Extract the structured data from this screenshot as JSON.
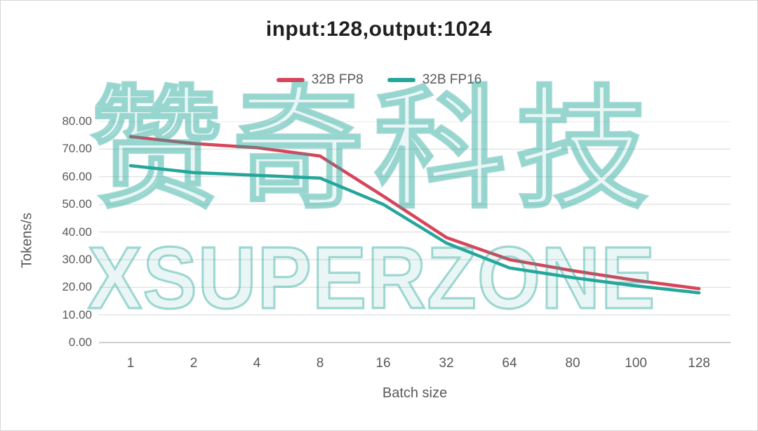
{
  "title": "input:128,output:1024",
  "legend": [
    {
      "label": "32B FP8",
      "color": "#d6455a"
    },
    {
      "label": "32B FP16",
      "color": "#26a69a"
    }
  ],
  "watermark": {
    "line1": "赞奇科技",
    "line2": "XSUPERZONE",
    "color": "#26a69a"
  },
  "chart_data": {
    "type": "line",
    "categories": [
      "1",
      "2",
      "4",
      "8",
      "16",
      "32",
      "64",
      "80",
      "100",
      "128"
    ],
    "series": [
      {
        "name": "32B FP8",
        "color": "#d6455a",
        "values": [
          74.5,
          72.0,
          70.5,
          67.5,
          53.0,
          38.0,
          30.0,
          26.0,
          22.5,
          19.5
        ]
      },
      {
        "name": "32B FP16",
        "color": "#26a69a",
        "values": [
          64.0,
          61.5,
          60.5,
          59.5,
          50.0,
          36.0,
          27.0,
          23.5,
          20.5,
          18.0
        ]
      }
    ],
    "title": "input:128,output:1024",
    "xlabel": "Batch size",
    "ylabel": "Tokens/s",
    "ylim": [
      0,
      80
    ],
    "ytick_step": 10,
    "ytick_labels": [
      "0.00",
      "10.00",
      "20.00",
      "30.00",
      "40.00",
      "50.00",
      "60.00",
      "70.00",
      "80.00"
    ],
    "grid": "horizontal",
    "legend_position": "top",
    "grid_color": "#d9d9d9",
    "axis_color": "#bfbfbf",
    "line_width": 4.5
  }
}
